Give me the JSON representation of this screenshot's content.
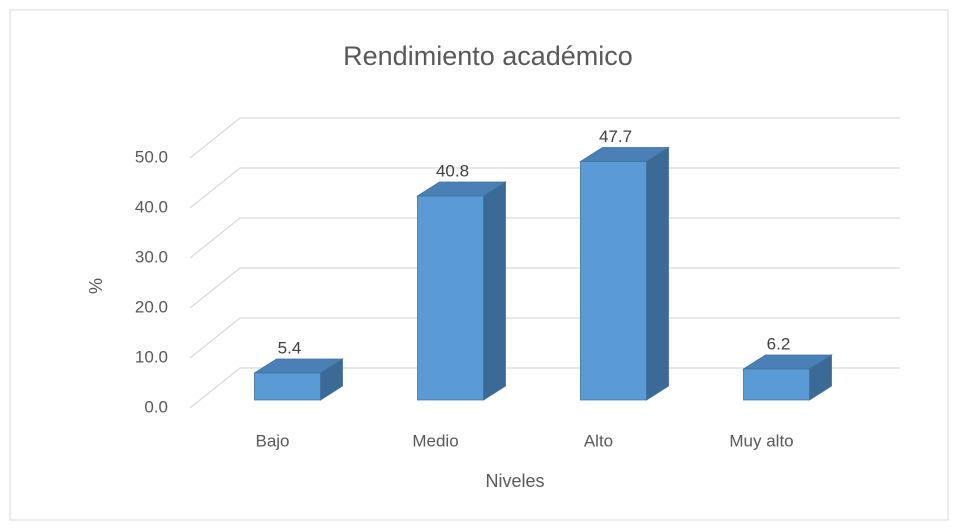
{
  "chart_data": {
    "type": "bar3d",
    "title": "Rendimiento académico",
    "x_label": "Niveles",
    "y_label": "%",
    "categories": [
      "Bajo",
      "Medio",
      "Alto",
      "Muy alto"
    ],
    "values": [
      5.4,
      40.8,
      47.7,
      6.2
    ],
    "color": "#5b9bd5",
    "ylim": [
      0,
      50
    ],
    "yticks": [
      {
        "value": 0,
        "label": "0.0"
      },
      {
        "value": 10,
        "label": "10.0"
      },
      {
        "value": 20,
        "label": "20.0"
      },
      {
        "value": 30,
        "label": "30.0"
      },
      {
        "value": 40,
        "label": "40.0"
      },
      {
        "value": 50,
        "label": "50.0"
      }
    ],
    "grid": true
  }
}
